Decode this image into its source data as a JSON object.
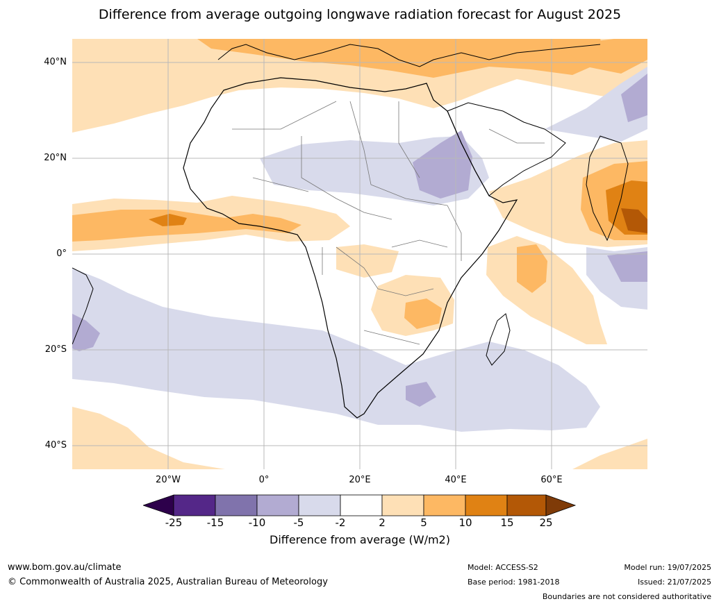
{
  "title": "Difference from average outgoing longwave radiation forecast for August 2025",
  "map": {
    "lon_range": [
      -40,
      80
    ],
    "lat_range": [
      -45,
      45
    ],
    "lat_labels": [
      "40°N",
      "20°N",
      "0°",
      "20°S",
      "40°S"
    ],
    "lon_labels": [
      "20°W",
      "0°",
      "20°E",
      "40°E",
      "60°E"
    ],
    "colors": {
      "p2_5": "#fee0b6",
      "p5_10": "#fdb863",
      "p10_15": "#e08214",
      "p15_25": "#b35806",
      "m2_5": "#d8daeb",
      "m5_10": "#b2abd2",
      "m10_15": "#8073ac",
      "m15_25": "#542788",
      "grid": "#b8b8b8",
      "coast": "#000000",
      "border": "#777777"
    }
  },
  "legend": {
    "ticks": [
      "-25",
      "-15",
      "-10",
      "-5",
      "-2",
      "2",
      "5",
      "10",
      "15",
      "25"
    ],
    "colors": [
      "#2d004b",
      "#542788",
      "#8073ac",
      "#b2abd2",
      "#d8daeb",
      "#ffffff",
      "#fee0b6",
      "#fdb863",
      "#e08214",
      "#b35806",
      "#7f3b08"
    ],
    "title": "Difference from average (W/m2)"
  },
  "footer": {
    "url": "www.bom.gov.au/climate",
    "copyright": "© Commonwealth of Australia 2025, Australian Bureau of Meteorology",
    "model": "Model: ACCESS-S2",
    "base_period": "Base period: 1981-2018",
    "model_run": "Model run: 19/07/2025",
    "issued": "Issued: 21/07/2025",
    "boundaries": "Boundaries are not considered authoritative"
  }
}
